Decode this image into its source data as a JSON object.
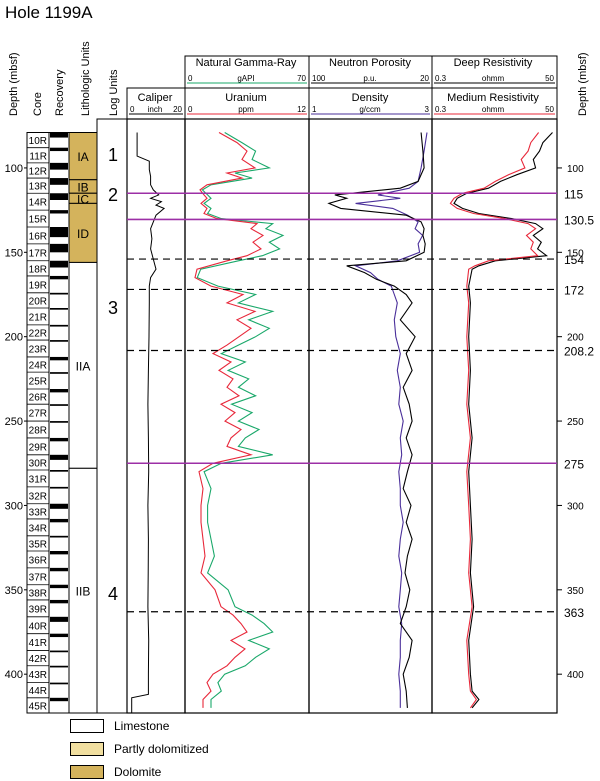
{
  "title": "Hole 1199A",
  "columns": {
    "depth_left": "Depth (mbsf)",
    "core": "Core",
    "recovery": "Recovery",
    "lithologic_units": "Lithologic Units",
    "log_units": "Log Units",
    "depth_right": "Depth (mbsf)"
  },
  "colors": {
    "dolomite": "#d4b35c",
    "partly_dolomitized": "#f1dfa0",
    "limestone": "#ffffff",
    "gamma": "#1aa86a",
    "uranium": "#e8283a",
    "density": "#000000",
    "porosity": "#4a2f9a",
    "deep_res": "#000000",
    "med_res": "#e8283a",
    "boundary_major": "#9c2fa6"
  },
  "tracks": {
    "caliper": {
      "name": "Caliper",
      "min": "0",
      "unit": "inch",
      "max": "20"
    },
    "gamma": {
      "name": "Natural Gamma-Ray",
      "min": "0",
      "unit": "gAPI",
      "max": "70"
    },
    "uranium": {
      "name": "Uranium",
      "min": "0",
      "unit": "ppm",
      "max": "12"
    },
    "porosity": {
      "name": "Neutron Porosity",
      "min": "100",
      "unit": "p.u.",
      "max": "20"
    },
    "density": {
      "name": "Density",
      "min": "1",
      "unit": "g/ccm",
      "max": "3"
    },
    "deep_res": {
      "name": "Deep Resistivity",
      "min": "0.3",
      "unit": "ohmm",
      "max": "50"
    },
    "med_res": {
      "name": "Medium Resistivity",
      "min": "0.3",
      "unit": "ohmm",
      "max": "50"
    }
  },
  "legend": [
    {
      "label": "Limestone",
      "color": "#ffffff"
    },
    {
      "label": "Partly dolomitized",
      "color": "#f1dfa0"
    },
    {
      "label": "Dolomite",
      "color": "#d4b35c"
    }
  ],
  "chart_data": {
    "type": "line",
    "depth_range": [
      71,
      423
    ],
    "depth_ticks_left": [
      100,
      150,
      200,
      250,
      300,
      350,
      400
    ],
    "depth_ticks_right": [
      100,
      150,
      200,
      250,
      300,
      350,
      400
    ],
    "cores": [
      "10R",
      "11R",
      "12R",
      "13R",
      "14R",
      "15R",
      "16R",
      "17R",
      "18R",
      "19R",
      "20R",
      "21R",
      "22R",
      "23R",
      "24R",
      "25R",
      "26R",
      "27R",
      "28R",
      "29R",
      "30R",
      "31R",
      "32R",
      "33R",
      "34R",
      "35R",
      "36R",
      "37R",
      "38R",
      "39R",
      "40R",
      "41R",
      "42R",
      "43R",
      "44R",
      "45R"
    ],
    "core_tops": [
      79,
      88,
      97,
      106,
      115,
      125,
      135,
      145,
      155,
      164,
      174,
      183,
      193,
      202,
      212,
      221,
      231,
      240,
      250,
      260,
      270,
      279,
      289,
      299,
      308,
      318,
      327,
      337,
      347,
      356,
      366,
      376,
      386,
      395,
      405,
      414
    ],
    "core_bottom": 423,
    "recovery": [
      {
        "top": 79,
        "bottom": 82
      },
      {
        "top": 88,
        "bottom": 90
      },
      {
        "top": 97,
        "bottom": 101
      },
      {
        "top": 106,
        "bottom": 110
      },
      {
        "top": 115,
        "bottom": 119
      },
      {
        "top": 125,
        "bottom": 127
      },
      {
        "top": 135,
        "bottom": 141
      },
      {
        "top": 145,
        "bottom": 150
      },
      {
        "top": 155,
        "bottom": 159
      },
      {
        "top": 164,
        "bottom": 166
      },
      {
        "top": 174,
        "bottom": 175
      },
      {
        "top": 183,
        "bottom": 184
      },
      {
        "top": 193,
        "bottom": 194
      },
      {
        "top": 202,
        "bottom": 203
      },
      {
        "top": 212,
        "bottom": 214
      },
      {
        "top": 221,
        "bottom": 222
      },
      {
        "top": 231,
        "bottom": 233
      },
      {
        "top": 240,
        "bottom": 241
      },
      {
        "top": 250,
        "bottom": 251
      },
      {
        "top": 260,
        "bottom": 262
      },
      {
        "top": 270,
        "bottom": 273
      },
      {
        "top": 279,
        "bottom": 280
      },
      {
        "top": 289,
        "bottom": 290
      },
      {
        "top": 299,
        "bottom": 302
      },
      {
        "top": 308,
        "bottom": 310
      },
      {
        "top": 318,
        "bottom": 319
      },
      {
        "top": 327,
        "bottom": 329
      },
      {
        "top": 337,
        "bottom": 339
      },
      {
        "top": 347,
        "bottom": 349
      },
      {
        "top": 356,
        "bottom": 358
      },
      {
        "top": 366,
        "bottom": 369
      },
      {
        "top": 376,
        "bottom": 378
      },
      {
        "top": 386,
        "bottom": 387
      },
      {
        "top": 395,
        "bottom": 396
      },
      {
        "top": 405,
        "bottom": 406
      },
      {
        "top": 414,
        "bottom": 416
      }
    ],
    "lithologic_units": [
      {
        "label": "IA",
        "top": 79,
        "bottom": 107,
        "fill": "dolomite"
      },
      {
        "label": "IB",
        "top": 107,
        "bottom": 115,
        "fill": "dolomite"
      },
      {
        "label": "IC",
        "top": 115,
        "bottom": 121,
        "fill": "dolomite"
      },
      {
        "label": "ID",
        "top": 121,
        "bottom": 156,
        "fill": "dolomite"
      },
      {
        "label": "IIA",
        "top": 156,
        "bottom": 278,
        "fill": "limestone"
      },
      {
        "label": "IIB",
        "top": 278,
        "bottom": 423,
        "fill": "limestone"
      }
    ],
    "log_units": [
      {
        "label": "1",
        "top": 71,
        "bottom": 115
      },
      {
        "label": "2",
        "top": 115,
        "bottom": 130.5
      },
      {
        "label": "3",
        "top": 130.5,
        "bottom": 275
      },
      {
        "label": "4",
        "top": 275,
        "bottom": 423
      }
    ],
    "boundaries": [
      {
        "depth": 115,
        "label": "115",
        "style": "solid"
      },
      {
        "depth": 130.5,
        "label": "130.5",
        "style": "solid"
      },
      {
        "depth": 154,
        "label": "154",
        "style": "dashed"
      },
      {
        "depth": 172,
        "label": "172",
        "style": "dashed"
      },
      {
        "depth": 208.2,
        "label": "208.2",
        "style": "dashed"
      },
      {
        "depth": 275,
        "label": "275",
        "style": "solid"
      },
      {
        "depth": 363,
        "label": "363",
        "style": "dashed"
      }
    ],
    "series": {
      "caliper": {
        "depth": [
          79,
          93,
          96,
          101,
          105,
          110,
          113,
          116,
          118,
          120,
          122,
          124,
          128,
          132,
          136,
          142,
          148,
          154,
          160,
          165,
          170,
          180,
          200,
          220,
          240,
          260,
          280,
          300,
          320,
          340,
          360,
          380,
          400,
          412,
          414,
          418,
          423
        ],
        "values": [
          3,
          3,
          7.5,
          7.5,
          8,
          8,
          9,
          11,
          8,
          12,
          10,
          13,
          10,
          9,
          8,
          8.5,
          8,
          9,
          10,
          8,
          7.5,
          7.5,
          7.4,
          7.2,
          7.0,
          7.2,
          7.3,
          7.0,
          7.2,
          7.1,
          7.0,
          7.3,
          7.2,
          7.2,
          1,
          1,
          1
        ]
      },
      "gamma": {
        "depth": [
          79,
          85,
          90,
          95,
          100,
          103,
          106,
          110,
          113,
          116,
          118,
          121,
          124,
          127,
          130,
          133,
          136,
          140,
          144,
          148,
          152,
          155,
          160,
          165,
          170,
          175,
          180,
          185,
          190,
          195,
          200,
          205,
          210,
          215,
          220,
          225,
          230,
          235,
          240,
          245,
          250,
          255,
          260,
          265,
          270,
          275,
          280,
          290,
          300,
          310,
          320,
          330,
          340,
          350,
          360,
          365,
          370,
          375,
          380,
          385,
          390,
          395,
          400,
          405,
          410,
          415,
          420
        ],
        "values": [
          22,
          32,
          40,
          38,
          48,
          28,
          38,
          14,
          9,
          12,
          14,
          10,
          14,
          12,
          20,
          50,
          46,
          56,
          48,
          54,
          44,
          30,
          8,
          6,
          18,
          40,
          30,
          50,
          36,
          48,
          40,
          30,
          20,
          34,
          24,
          36,
          30,
          40,
          26,
          38,
          30,
          42,
          34,
          30,
          50,
          20,
          10,
          14,
          12,
          12,
          14,
          16,
          12,
          24,
          28,
          38,
          45,
          50,
          36,
          48,
          40,
          34,
          22,
          18,
          20,
          14,
          14
        ]
      },
      "uranium": {
        "depth": [
          79,
          85,
          90,
          95,
          100,
          103,
          106,
          110,
          113,
          116,
          118,
          121,
          124,
          127,
          130,
          133,
          136,
          140,
          144,
          148,
          152,
          155,
          160,
          165,
          170,
          175,
          180,
          185,
          190,
          195,
          200,
          205,
          210,
          215,
          220,
          225,
          230,
          235,
          240,
          245,
          250,
          255,
          260,
          265,
          270,
          275,
          280,
          290,
          300,
          310,
          320,
          330,
          340,
          350,
          360,
          365,
          370,
          375,
          380,
          385,
          390,
          395,
          400,
          405,
          410,
          415,
          420
        ],
        "values": [
          3.2,
          5,
          6,
          5.5,
          6.8,
          4,
          5.5,
          2,
          1.3,
          1.7,
          2,
          1.4,
          2,
          1.7,
          3,
          7,
          6.4,
          7.6,
          6.6,
          7.4,
          6,
          4,
          1,
          0.8,
          2.4,
          5.6,
          4,
          6.8,
          5,
          6.4,
          5.2,
          4,
          2.6,
          4.4,
          3.2,
          4.6,
          4,
          5.2,
          3.4,
          4.8,
          3.8,
          5.4,
          4.4,
          4,
          6.4,
          2.6,
          1.2,
          1.6,
          1.4,
          1.4,
          1.6,
          1.8,
          1.4,
          2.8,
          3.4,
          4.6,
          5.4,
          6,
          4.4,
          5.8,
          4.8,
          4,
          2.6,
          2,
          2.4,
          1.6,
          1.6
        ]
      },
      "porosity": {
        "depth": [
          79,
          90,
          100,
          108,
          112,
          116,
          118,
          121,
          124,
          128,
          132,
          136,
          140,
          145,
          150,
          155,
          158,
          162,
          166,
          170,
          175,
          180,
          190,
          200,
          210,
          220,
          230,
          240,
          250,
          260,
          270,
          280,
          290,
          300,
          310,
          320,
          330,
          340,
          350,
          360,
          370,
          380,
          390,
          400,
          410,
          420
        ],
        "values": [
          22,
          24,
          26,
          28,
          34,
          55,
          40,
          70,
          45,
          35,
          28,
          30,
          25,
          28,
          27,
          42,
          70,
          60,
          55,
          46,
          44,
          42,
          44,
          43,
          40,
          42,
          40,
          41,
          38,
          40,
          39,
          41,
          40,
          40,
          38,
          40,
          41,
          39,
          40,
          41,
          39,
          40,
          40,
          41,
          40,
          40
        ]
      },
      "density": {
        "depth": [
          79,
          90,
          100,
          108,
          112,
          116,
          118,
          121,
          124,
          128,
          132,
          136,
          140,
          145,
          150,
          155,
          158,
          162,
          166,
          170,
          175,
          180,
          190,
          200,
          210,
          220,
          230,
          240,
          250,
          260,
          270,
          280,
          290,
          300,
          310,
          320,
          330,
          340,
          350,
          360,
          370,
          380,
          390,
          400,
          410,
          420
        ],
        "values": [
          2.85,
          2.88,
          2.9,
          2.8,
          2.5,
          1.4,
          1.6,
          1.3,
          1.5,
          2.6,
          2.85,
          2.9,
          2.88,
          2.92,
          2.9,
          2.6,
          1.6,
          1.9,
          2.1,
          2.4,
          2.6,
          2.7,
          2.5,
          2.75,
          2.6,
          2.7,
          2.55,
          2.65,
          2.7,
          2.6,
          2.7,
          2.62,
          2.55,
          2.68,
          2.6,
          2.7,
          2.62,
          2.58,
          2.66,
          2.6,
          2.5,
          2.7,
          2.65,
          2.55,
          2.6,
          2.62
        ]
      },
      "deep_res": {
        "depth": [
          79,
          85,
          90,
          95,
          100,
          104,
          108,
          112,
          115,
          118,
          121,
          124,
          127,
          130,
          133,
          136,
          140,
          144,
          148,
          152,
          155,
          158,
          160,
          170,
          180,
          200,
          220,
          240,
          260,
          280,
          300,
          320,
          340,
          360,
          380,
          400,
          410,
          415,
          420
        ],
        "values": [
          45,
          30,
          26,
          20,
          22,
          10,
          5,
          3,
          1.2,
          0.8,
          0.7,
          1,
          2,
          8,
          22,
          30,
          20,
          28,
          24,
          35,
          4,
          2,
          1.5,
          1.3,
          1.4,
          1.3,
          1.4,
          1.3,
          1.5,
          1.3,
          1.4,
          1.5,
          1.4,
          1.6,
          1.3,
          1.4,
          1.5,
          2,
          1.5
        ]
      },
      "med_res": {
        "depth": [
          79,
          85,
          90,
          95,
          100,
          104,
          108,
          112,
          115,
          118,
          121,
          124,
          127,
          130,
          133,
          136,
          140,
          144,
          148,
          152,
          155,
          158,
          160,
          170,
          180,
          200,
          220,
          240,
          260,
          280,
          300,
          320,
          340,
          360,
          380,
          400,
          410,
          415,
          420
        ],
        "values": [
          25,
          18,
          16,
          12,
          14,
          7,
          4,
          2.5,
          1,
          0.7,
          0.6,
          0.8,
          1.6,
          6,
          16,
          22,
          15,
          20,
          18,
          24,
          3,
          1.7,
          1.3,
          1.2,
          1.3,
          1.2,
          1.3,
          1.2,
          1.4,
          1.2,
          1.3,
          1.4,
          1.3,
          1.5,
          1.2,
          1.3,
          1.4,
          1.8,
          1.4
        ]
      }
    }
  }
}
